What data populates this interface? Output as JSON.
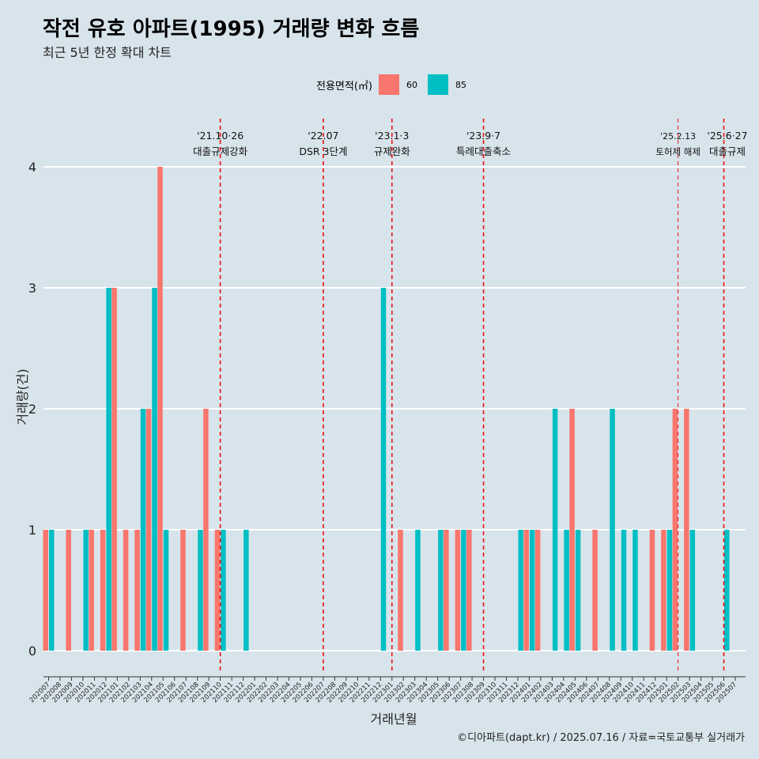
{
  "title": "작전 유호 아파트(1995) 거래량 변화 흐름",
  "subtitle": "최근 5년 한정 확대 차트",
  "caption": "©디아파트(dapt.kr) / 2025.07.16 / 자료=국토교통부 실거래가",
  "colors": {
    "60": "#f8766d",
    "85": "#00bfc4",
    "vline": "#ee1111",
    "background": "#d8e4eb",
    "grid": "#ffffff"
  },
  "legend": {
    "title": "전용면적(㎡)",
    "items": [
      "60",
      "85"
    ]
  },
  "chart_data": {
    "type": "bar",
    "xlabel": "거래년월",
    "ylabel": "거래량(건)",
    "ylim": [
      0,
      4
    ],
    "yticks": [
      0,
      1,
      2,
      3,
      4
    ],
    "categories": [
      "202007",
      "202008",
      "202009",
      "202010",
      "202011",
      "202012",
      "202101",
      "202102",
      "202103",
      "202104",
      "202105",
      "202106",
      "202107",
      "202108",
      "202109",
      "202110",
      "202111",
      "202112",
      "202201",
      "202202",
      "202203",
      "202204",
      "202205",
      "202206",
      "202207",
      "202208",
      "202209",
      "202210",
      "202211",
      "202212",
      "202301",
      "202302",
      "202303",
      "202304",
      "202305",
      "202306",
      "202307",
      "202308",
      "202309",
      "202310",
      "202311",
      "202312",
      "202401",
      "202402",
      "202403",
      "202404",
      "202405",
      "202406",
      "202407",
      "202408",
      "202409",
      "202410",
      "202411",
      "202412",
      "202501",
      "202502",
      "202503",
      "202504",
      "202505",
      "202506",
      "202507"
    ],
    "series": [
      {
        "name": "60",
        "values": [
          1,
          0,
          1,
          0,
          1,
          1,
          3,
          1,
          1,
          2,
          4,
          0,
          1,
          0,
          2,
          1,
          0,
          0,
          0,
          0,
          0,
          0,
          0,
          0,
          0,
          0,
          0,
          0,
          0,
          0,
          0,
          1,
          0,
          0,
          0,
          1,
          1,
          1,
          0,
          0,
          0,
          0,
          1,
          1,
          0,
          0,
          2,
          0,
          1,
          0,
          0,
          0,
          0,
          1,
          1,
          2,
          2,
          0,
          0,
          0,
          0
        ]
      },
      {
        "name": "85",
        "values": [
          1,
          0,
          0,
          1,
          0,
          3,
          0,
          0,
          2,
          3,
          1,
          0,
          0,
          1,
          0,
          1,
          0,
          1,
          0,
          0,
          0,
          0,
          0,
          0,
          0,
          0,
          0,
          0,
          0,
          3,
          0,
          0,
          1,
          0,
          1,
          0,
          1,
          0,
          0,
          0,
          0,
          1,
          1,
          0,
          2,
          1,
          1,
          0,
          0,
          2,
          1,
          1,
          0,
          0,
          1,
          0,
          1,
          0,
          0,
          1,
          0
        ]
      }
    ],
    "events": [
      {
        "date_label": "'21.10·26",
        "text": "대출규제강화",
        "month": "202110"
      },
      {
        "date_label": "'22.07",
        "text": "DSR 3단계",
        "month": "202207"
      },
      {
        "date_label": "'23.1·3",
        "text": "규제완화",
        "month": "202301"
      },
      {
        "date_label": "'23.9·7",
        "text": "특례대출축소",
        "month": "202309"
      },
      {
        "date_label": "'25.2.13",
        "text": "토허제 해제",
        "month": "202502"
      },
      {
        "date_label": "'25.6·27",
        "text": "대출규제",
        "month": "202506"
      }
    ]
  }
}
